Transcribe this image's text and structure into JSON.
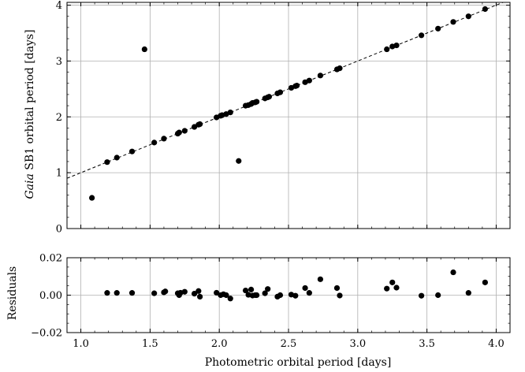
{
  "chart_data": [
    {
      "type": "scatter",
      "name": "main",
      "ylabel_italic": "Gaia",
      "ylabel_rest": " SB1 orbital period [days]",
      "xlabel": "",
      "xlim": [
        0.9,
        4.1
      ],
      "ylim": [
        0,
        4.05
      ],
      "xticks": [
        1.0,
        1.5,
        2.0,
        2.5,
        3.0,
        3.5,
        4.0
      ],
      "yticks": [
        0,
        1,
        2,
        3,
        4
      ],
      "ytick_labels": [
        "0",
        "1",
        "2",
        "3",
        "4"
      ],
      "grid": true,
      "reference_line": "y = x (dashed)",
      "marker_color": "#000000",
      "points": [
        [
          1.08,
          0.55
        ],
        [
          1.19,
          1.19
        ],
        [
          1.26,
          1.27
        ],
        [
          1.37,
          1.38
        ],
        [
          1.46,
          3.21
        ],
        [
          1.53,
          1.54
        ],
        [
          1.6,
          1.61
        ],
        [
          1.7,
          1.7
        ],
        [
          1.71,
          1.72
        ],
        [
          1.75,
          1.75
        ],
        [
          1.82,
          1.82
        ],
        [
          1.85,
          1.86
        ],
        [
          1.86,
          1.87
        ],
        [
          1.98,
          1.99
        ],
        [
          2.01,
          2.02
        ],
        [
          2.02,
          2.03
        ],
        [
          2.05,
          2.05
        ],
        [
          2.08,
          2.08
        ],
        [
          2.14,
          1.21
        ],
        [
          2.19,
          2.2
        ],
        [
          2.21,
          2.21
        ],
        [
          2.23,
          2.23
        ],
        [
          2.24,
          2.25
        ],
        [
          2.26,
          2.26
        ],
        [
          2.27,
          2.27
        ],
        [
          2.33,
          2.33
        ],
        [
          2.35,
          2.35
        ],
        [
          2.36,
          2.36
        ],
        [
          2.42,
          2.42
        ],
        [
          2.44,
          2.44
        ],
        [
          2.52,
          2.52
        ],
        [
          2.55,
          2.55
        ],
        [
          2.56,
          2.56
        ],
        [
          2.62,
          2.62
        ],
        [
          2.65,
          2.65
        ],
        [
          2.73,
          2.74
        ],
        [
          2.85,
          2.85
        ],
        [
          2.87,
          2.87
        ],
        [
          3.21,
          3.21
        ],
        [
          3.25,
          3.26
        ],
        [
          3.28,
          3.28
        ],
        [
          3.46,
          3.46
        ],
        [
          3.58,
          3.58
        ],
        [
          3.69,
          3.7
        ],
        [
          3.8,
          3.8
        ],
        [
          3.92,
          3.93
        ]
      ]
    },
    {
      "type": "scatter",
      "name": "residuals",
      "ylabel": "Residuals",
      "xlabel": "Photometric orbital period [days]",
      "xlim": [
        0.9,
        4.1
      ],
      "ylim": [
        -0.02,
        0.02
      ],
      "xticks": [
        1.0,
        1.5,
        2.0,
        2.5,
        3.0,
        3.5,
        4.0
      ],
      "xtick_labels": [
        "1.0",
        "1.5",
        "2.0",
        "2.5",
        "3.0",
        "3.5",
        "4.0"
      ],
      "yticks": [
        -0.02,
        0.0,
        0.02
      ],
      "ytick_labels": [
        "−0.02",
        "0.00",
        "0.02"
      ],
      "grid": true,
      "marker_color": "#000000",
      "points": [
        [
          1.19,
          0.0012
        ],
        [
          1.26,
          0.0012
        ],
        [
          1.37,
          0.0012
        ],
        [
          1.53,
          0.001
        ],
        [
          1.6,
          0.0015
        ],
        [
          1.61,
          0.002
        ],
        [
          1.7,
          0.001
        ],
        [
          1.71,
          0.0
        ],
        [
          1.72,
          0.0013
        ],
        [
          1.75,
          0.0018
        ],
        [
          1.82,
          0.0008
        ],
        [
          1.85,
          0.0022
        ],
        [
          1.86,
          -0.0008
        ],
        [
          1.98,
          0.0013
        ],
        [
          2.01,
          0.0
        ],
        [
          2.03,
          0.0005
        ],
        [
          2.05,
          0.0
        ],
        [
          2.08,
          -0.0018
        ],
        [
          2.19,
          0.0025
        ],
        [
          2.21,
          0.0002
        ],
        [
          2.23,
          0.003
        ],
        [
          2.24,
          -0.0002
        ],
        [
          2.26,
          0.0
        ],
        [
          2.27,
          0.0
        ],
        [
          2.33,
          0.001
        ],
        [
          2.35,
          0.0033
        ],
        [
          2.42,
          -0.0008
        ],
        [
          2.44,
          0.0
        ],
        [
          2.52,
          0.0003
        ],
        [
          2.55,
          -0.0003
        ],
        [
          2.62,
          0.0038
        ],
        [
          2.65,
          0.0012
        ],
        [
          2.73,
          0.0085
        ],
        [
          2.85,
          0.0038
        ],
        [
          2.87,
          -0.0002
        ],
        [
          3.21,
          0.0035
        ],
        [
          3.25,
          0.0068
        ],
        [
          3.28,
          0.004
        ],
        [
          3.46,
          -0.0003
        ],
        [
          3.58,
          0.0
        ],
        [
          3.69,
          0.0122
        ],
        [
          3.8,
          0.0012
        ],
        [
          3.92,
          0.0068
        ]
      ]
    }
  ]
}
